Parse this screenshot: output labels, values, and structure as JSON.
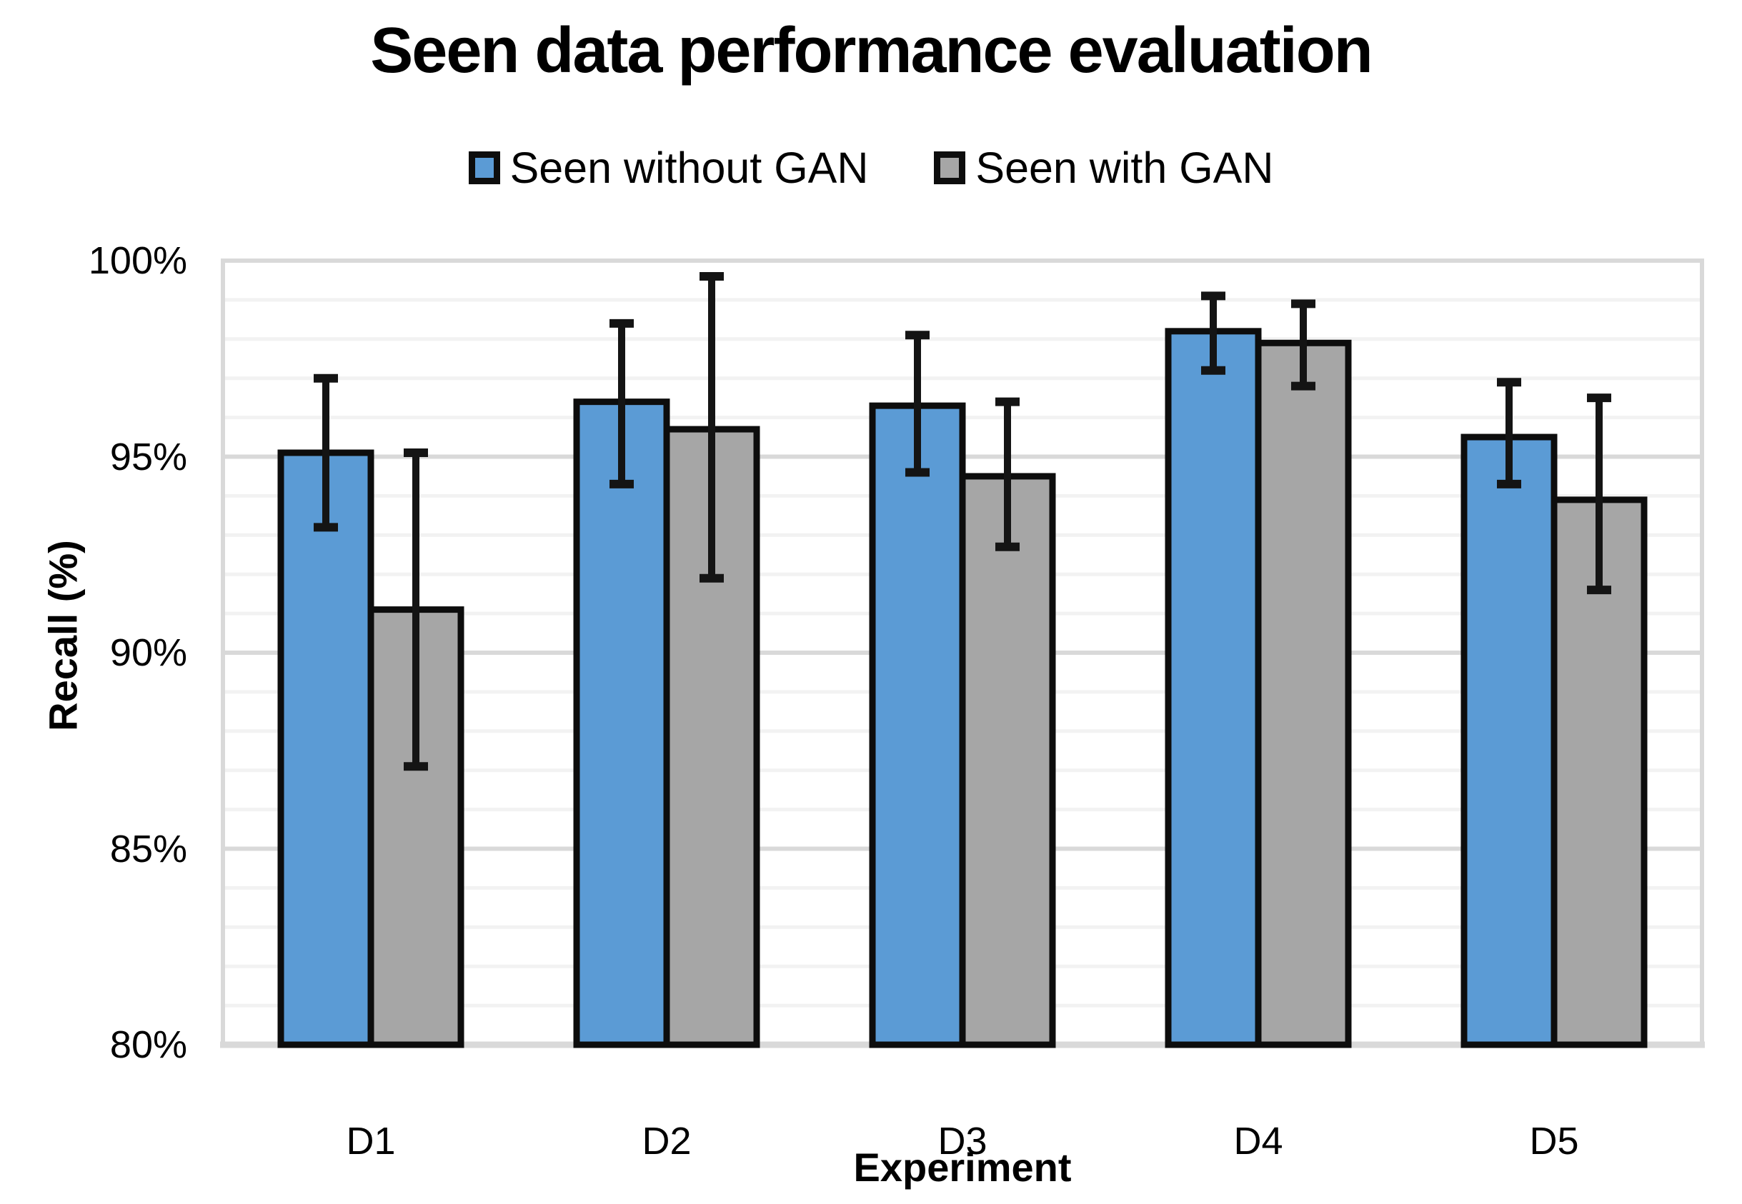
{
  "chart_data": {
    "type": "bar",
    "title": "Seen data performance evaluation",
    "xlabel": "Experiment",
    "ylabel": "Recall (%)",
    "ylim": [
      80,
      100
    ],
    "grid": true,
    "gridline_minor_step_pct": 1,
    "gridline_major_step_pct": 5,
    "legend_position": "top",
    "categories": [
      "D1",
      "D2",
      "D3",
      "D4",
      "D5"
    ],
    "ytick_labels": [
      "80%",
      "85%",
      "90%",
      "95%",
      "100%"
    ],
    "ytick_values": [
      80,
      85,
      90,
      95,
      100
    ],
    "series": [
      {
        "name": "Seen without GAN",
        "color": "#5B9BD5",
        "values": [
          95.1,
          96.4,
          96.3,
          98.2,
          95.5
        ],
        "err_low": [
          93.2,
          94.3,
          94.6,
          97.2,
          94.3
        ],
        "err_high": [
          97.0,
          98.4,
          98.1,
          99.1,
          96.9
        ]
      },
      {
        "name": "Seen with GAN",
        "color": "#A6A6A6",
        "values": [
          91.1,
          95.7,
          94.5,
          97.9,
          93.9
        ],
        "err_low": [
          87.1,
          91.9,
          92.7,
          96.8,
          91.6
        ],
        "err_high": [
          95.1,
          99.6,
          96.4,
          98.9,
          96.5
        ]
      }
    ]
  },
  "colors": {
    "bar_border": "#0d0d0d",
    "error_bar": "#141414",
    "grid_minor": "#F2F2F2",
    "grid_major": "#D9D9D9",
    "axis_line": "#D9D9D9"
  }
}
